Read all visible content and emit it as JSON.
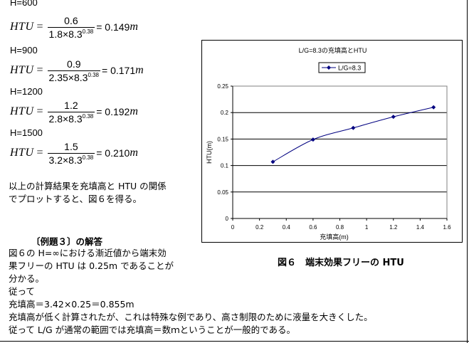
{
  "calc": [
    {
      "label": "H=600",
      "lhs": "HTU",
      "num": "0.6",
      "den_base": "1.8×8.3",
      "den_exp": "0.38",
      "result": "= 0.149",
      "unit": "m"
    },
    {
      "label": "H=900",
      "lhs": "HTU",
      "num": "0.9",
      "den_base": "2.35×8.3",
      "den_exp": "0.38",
      "result": "= 0.171",
      "unit": "m"
    },
    {
      "label": "H=1200",
      "lhs": "HTU",
      "num": "1.2",
      "den_base": "2.8×8.3",
      "den_exp": "0.38",
      "result": "= 0.192",
      "unit": "m"
    },
    {
      "label": "H=1500",
      "lhs": "HTU",
      "num": "1.5",
      "den_base": "3.2×8.3",
      "den_exp": "0.38",
      "result": "= 0.210",
      "unit": "m"
    }
  ],
  "summary": [
    "以上の計算結果を充填高と HTU の関係",
    "でプロットすると、図６を得る。"
  ],
  "example": {
    "title": "〔例題３〕の解答",
    "lines": [
      "図６の H=∞における漸近値から端末効",
      "果フリーの HTU は 0.25m であることが",
      "分かる。",
      "従って",
      "充填高＝3.42×0.25＝0.855m",
      "充填高が低く計算されたが、これは特殊な例であり、高さ制限のために液量を大きくした。",
      "従って L/G が通常の範囲では充填高＝数ｍということが一般的である。"
    ]
  },
  "figure_caption": "図６　端末効果フリーの HTU",
  "chart_data": {
    "type": "line",
    "title": "L/G=8.3の充填高とHTU",
    "xlabel": "充填高(m)",
    "ylabel": "HTU(m)",
    "xlim": [
      0,
      1.6
    ],
    "ylim": [
      0,
      0.25
    ],
    "xticks": [
      "0",
      "0.2",
      "0.4",
      "0.6",
      "0.8",
      "1",
      "1.2",
      "1.4",
      "1.6"
    ],
    "yticks": [
      "0",
      "0.05",
      "0.1",
      "0.15",
      "0.2",
      "0.25"
    ],
    "grid": "horizontal",
    "legend": "top-left",
    "series": [
      {
        "name": "L/G=8.3",
        "color": "#000080",
        "marker": "diamond",
        "x": [
          0.3,
          0.6,
          0.9,
          1.2,
          1.5
        ],
        "y": [
          0.107,
          0.149,
          0.171,
          0.192,
          0.21
        ]
      }
    ]
  }
}
